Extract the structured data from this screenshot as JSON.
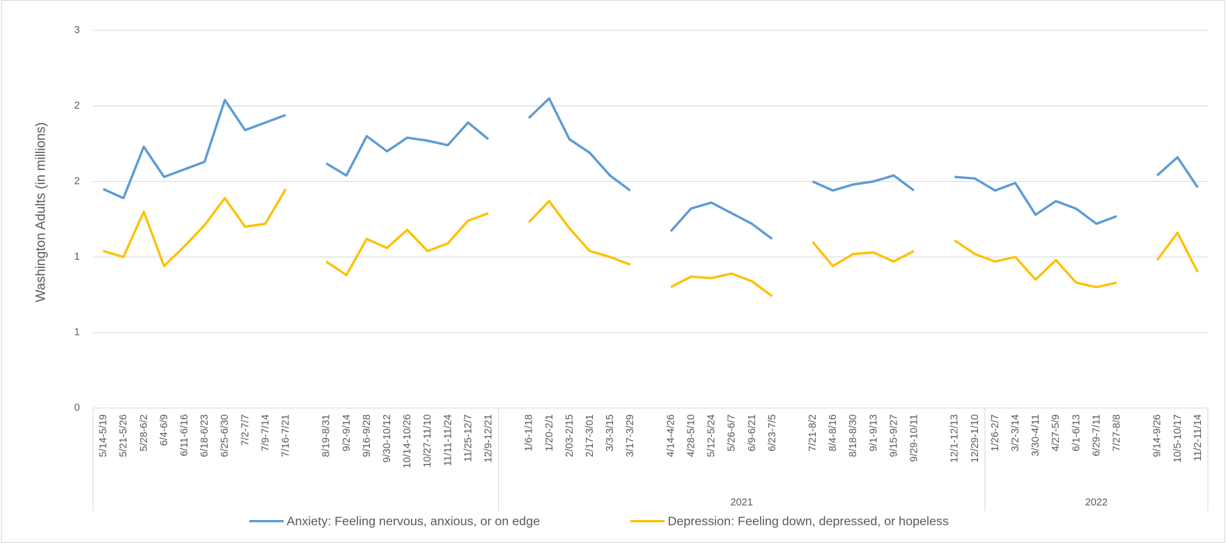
{
  "chart_data": {
    "type": "line",
    "y_label": "Washington Adults (in millions)",
    "ylim": [
      0,
      2.5
    ],
    "yticks": [
      0,
      {
        "value": 0.5,
        "label": "1"
      },
      1,
      {
        "value": 1.5,
        "label": "2"
      },
      2,
      {
        "value": 2.5,
        "label": "3"
      }
    ],
    "grid": true,
    "legend": "bottom",
    "categories": [
      "5/14-5/19",
      "5/21-5/26",
      "5/28-6/2",
      "6/4-6/9",
      "6/11-6/16",
      "6/18-6/23",
      "6/25-6/30",
      "7/2-7/7",
      "7/9-7/14",
      "7/16-7/21",
      null,
      "8/19-8/31",
      "9/2-9/14",
      "9/16-9/28",
      "9/30-10/12",
      "10/14-10/26",
      "10/27-11/10",
      "11/11-11/24",
      "11/25-12/7",
      "12/9-12/21",
      null,
      "1/6-1/18",
      "1/20-2/1",
      "2/03-2/15",
      "2/17-3/01",
      "3/3-3/15",
      "3/17-3/29",
      null,
      "4/14-4/26",
      "4/28-5/10",
      "5/12-5/24",
      "5/26-6/7",
      "6/9-6/21",
      "6/23-7/5",
      null,
      "7/21-8/2",
      "8/4-8/16",
      "8/18-8/30",
      "9/1-9/13",
      "9/15-9/27",
      "9/29-10/11",
      null,
      "12/1-12/13",
      "12/29-1/10",
      "1/26-2/7",
      "3/2-3/14",
      "3/30-4/11",
      "4/27-5/9",
      "6/1-6/13",
      "6/29-7/11",
      "7/27-8/8",
      null,
      "9/14-9/26",
      "10/5-10/17",
      "11/2-11/14"
    ],
    "groups": [
      {
        "label": null,
        "count": 20
      },
      {
        "label": "2021",
        "count": 24
      },
      {
        "label": "2022",
        "count": 11
      }
    ],
    "series": [
      {
        "name": "Anxiety: Feeling nervous, anxious, or on edge",
        "color": "#5b9bd5",
        "values": [
          1.45,
          1.39,
          1.73,
          1.53,
          1.58,
          1.63,
          2.04,
          1.84,
          1.89,
          1.94,
          null,
          1.62,
          1.54,
          1.8,
          1.7,
          1.79,
          1.77,
          1.74,
          1.89,
          1.78,
          null,
          1.92,
          2.05,
          1.78,
          1.69,
          1.54,
          1.44,
          null,
          1.17,
          1.32,
          1.36,
          1.29,
          1.22,
          1.12,
          null,
          1.5,
          1.44,
          1.48,
          1.5,
          1.54,
          1.44,
          null,
          1.53,
          1.52,
          1.44,
          1.49,
          1.28,
          1.37,
          1.32,
          1.22,
          1.27,
          null,
          1.54,
          1.66,
          1.46
        ]
      },
      {
        "name": "Depression: Feeling down, depressed, or hopeless",
        "color": "#ffc000",
        "values": [
          1.04,
          1.0,
          1.3,
          0.94,
          1.07,
          1.21,
          1.39,
          1.2,
          1.22,
          1.45,
          null,
          0.97,
          0.88,
          1.12,
          1.06,
          1.18,
          1.04,
          1.09,
          1.24,
          1.29,
          null,
          1.23,
          1.37,
          1.19,
          1.04,
          1.0,
          0.95,
          null,
          0.8,
          0.87,
          0.86,
          0.89,
          0.84,
          0.74,
          null,
          1.1,
          0.94,
          1.02,
          1.03,
          0.97,
          1.04,
          null,
          1.11,
          1.02,
          0.97,
          1.0,
          0.85,
          0.98,
          0.83,
          0.8,
          0.83,
          null,
          0.98,
          1.16,
          0.9
        ]
      }
    ]
  }
}
